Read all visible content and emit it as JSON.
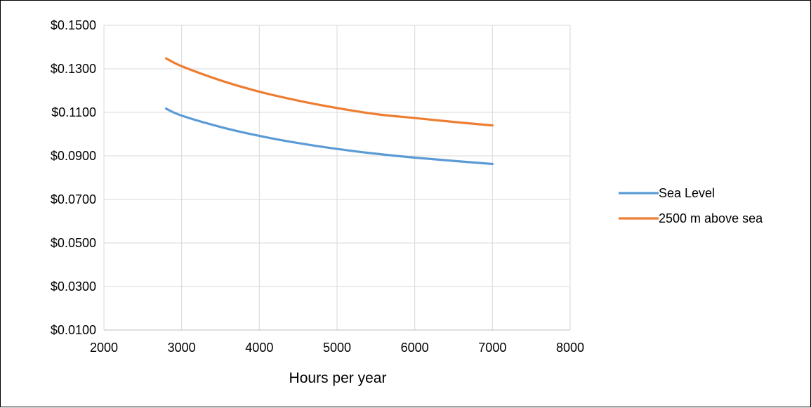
{
  "chart_data": {
    "type": "line",
    "title": "",
    "xlabel": "Hours per year",
    "ylabel": "",
    "xlim": [
      2000,
      8000
    ],
    "ylim": [
      0.01,
      0.15
    ],
    "xticks": [
      2000,
      3000,
      4000,
      5000,
      6000,
      7000,
      8000
    ],
    "yticks": [
      0.01,
      0.03,
      0.05,
      0.07,
      0.09,
      0.11,
      0.13,
      0.15
    ],
    "xtick_labels": [
      "2000",
      "3000",
      "4000",
      "5000",
      "6000",
      "7000",
      "8000"
    ],
    "ytick_labels": [
      "$0.0100",
      "$0.0300",
      "$0.0500",
      "$0.0700",
      "$0.0900",
      "$0.1100",
      "$0.1300",
      "$0.1500"
    ],
    "grid": true,
    "legend_position": "right",
    "series": [
      {
        "name": "Sea Level",
        "color": "#5B9BD5",
        "x": [
          2800,
          3000,
          3500,
          4000,
          4500,
          5000,
          5500,
          6000,
          6500,
          7000
        ],
        "y": [
          0.1117,
          0.1085,
          0.1033,
          0.0992,
          0.0959,
          0.0932,
          0.091,
          0.0892,
          0.0877,
          0.0863
        ]
      },
      {
        "name": "2500 m above sea",
        "color": "#ED7D31",
        "x": [
          2800,
          3000,
          3500,
          4000,
          4500,
          5000,
          5500,
          6000,
          6500,
          7000
        ],
        "y": [
          0.1348,
          0.1312,
          0.1247,
          0.1195,
          0.1154,
          0.112,
          0.1092,
          0.1074,
          0.1056,
          0.104
        ]
      }
    ]
  }
}
